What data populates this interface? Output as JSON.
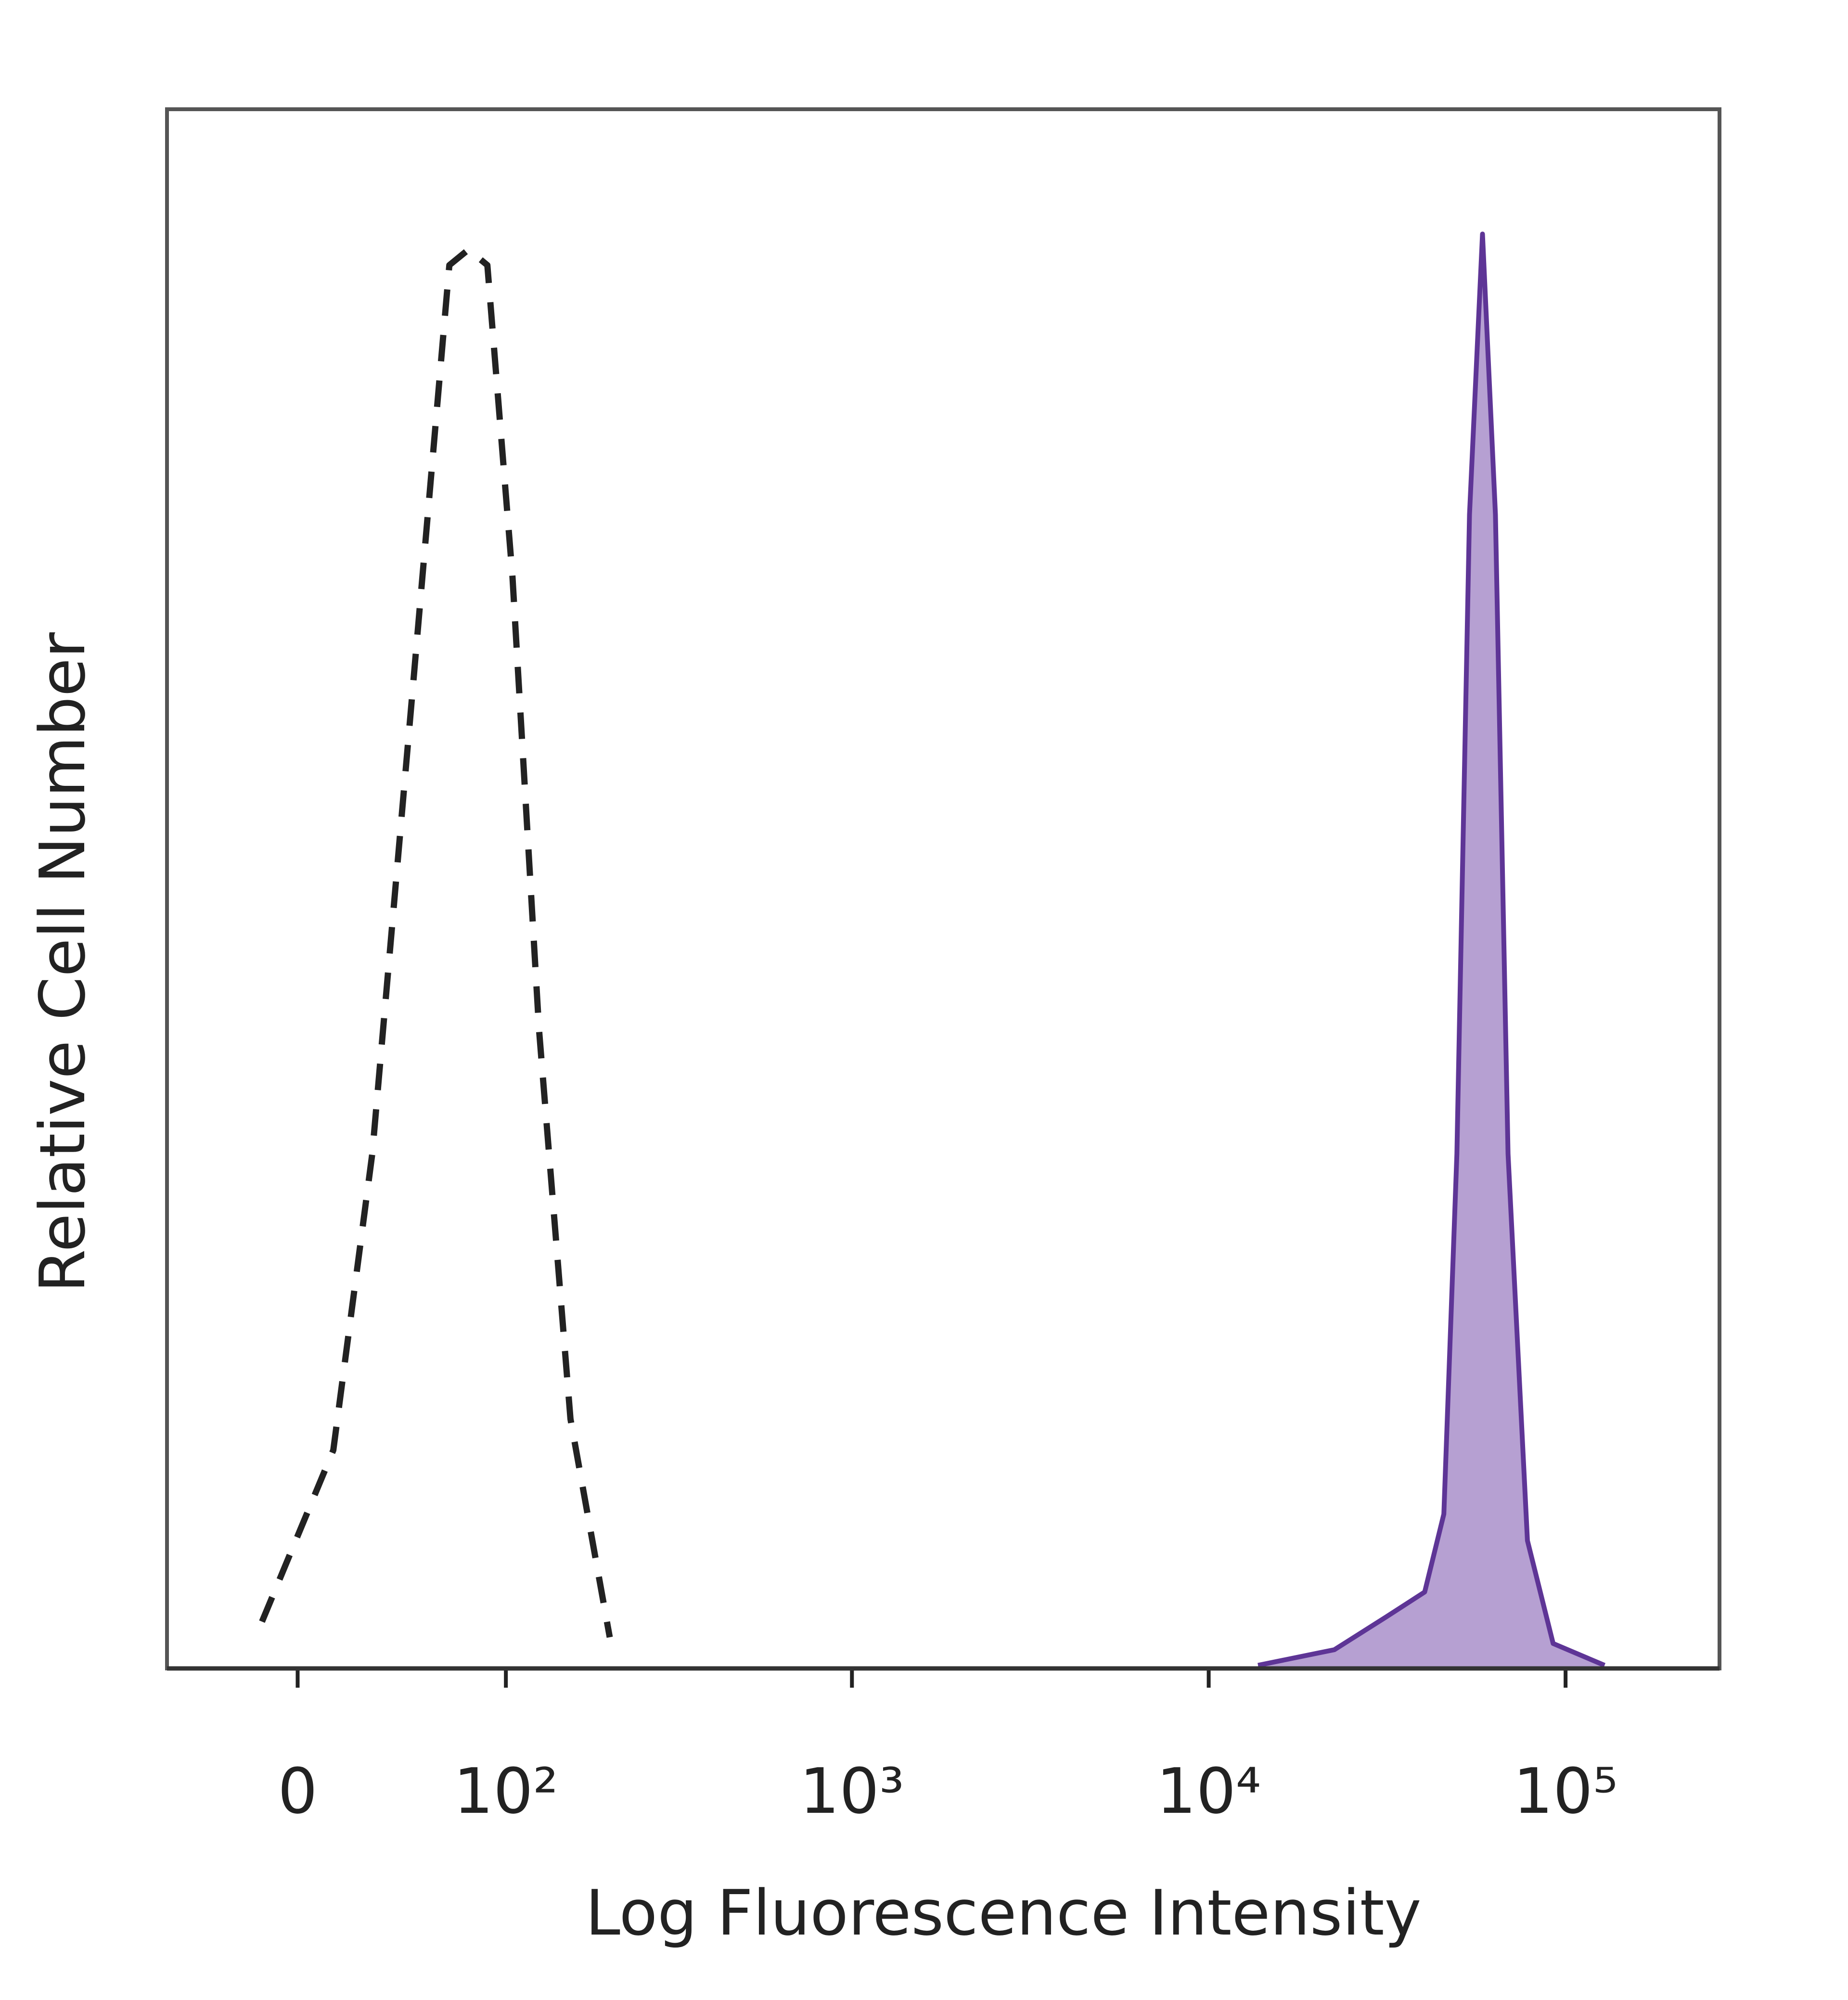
{
  "chart_data": {
    "type": "histogram-overlay",
    "x_label": "Log Fluorescence Intensity",
    "y_label": "Relative Cell Number",
    "xscale": "biexponential",
    "xlim": [
      -53,
      270000
    ],
    "xticks": [
      0,
      {
        "value": 100,
        "label": "10²"
      },
      {
        "value": 1000,
        "label": "10³"
      },
      {
        "value": 10000,
        "label": "10⁴"
      },
      {
        "value": 100000,
        "label": "10⁵"
      }
    ],
    "ylim": [
      0,
      100
    ],
    "series": [
      {
        "color": "#222222",
        "style": "dashed",
        "x": [
          -13,
          13,
          28,
          45,
          64,
          75,
          87,
          105,
          127,
          158,
          206
        ],
        "values": [
          3,
          14,
          33,
          62,
          90,
          91,
          90,
          70,
          41,
          16,
          2
        ]
      },
      {
        "color": "#5e3596",
        "fill": "#b6a0d2",
        "style": "solid",
        "x": [
          13750,
          22500,
          31400,
          40300,
          45600,
          49600,
          53800,
          58500,
          63600,
          69000,
          78200,
          92300,
          128600
        ],
        "values": [
          0.2,
          1.2,
          3.3,
          4.9,
          9.9,
          33,
          74,
          92,
          74,
          33,
          8.2,
          1.6,
          0.2
        ]
      }
    ]
  }
}
